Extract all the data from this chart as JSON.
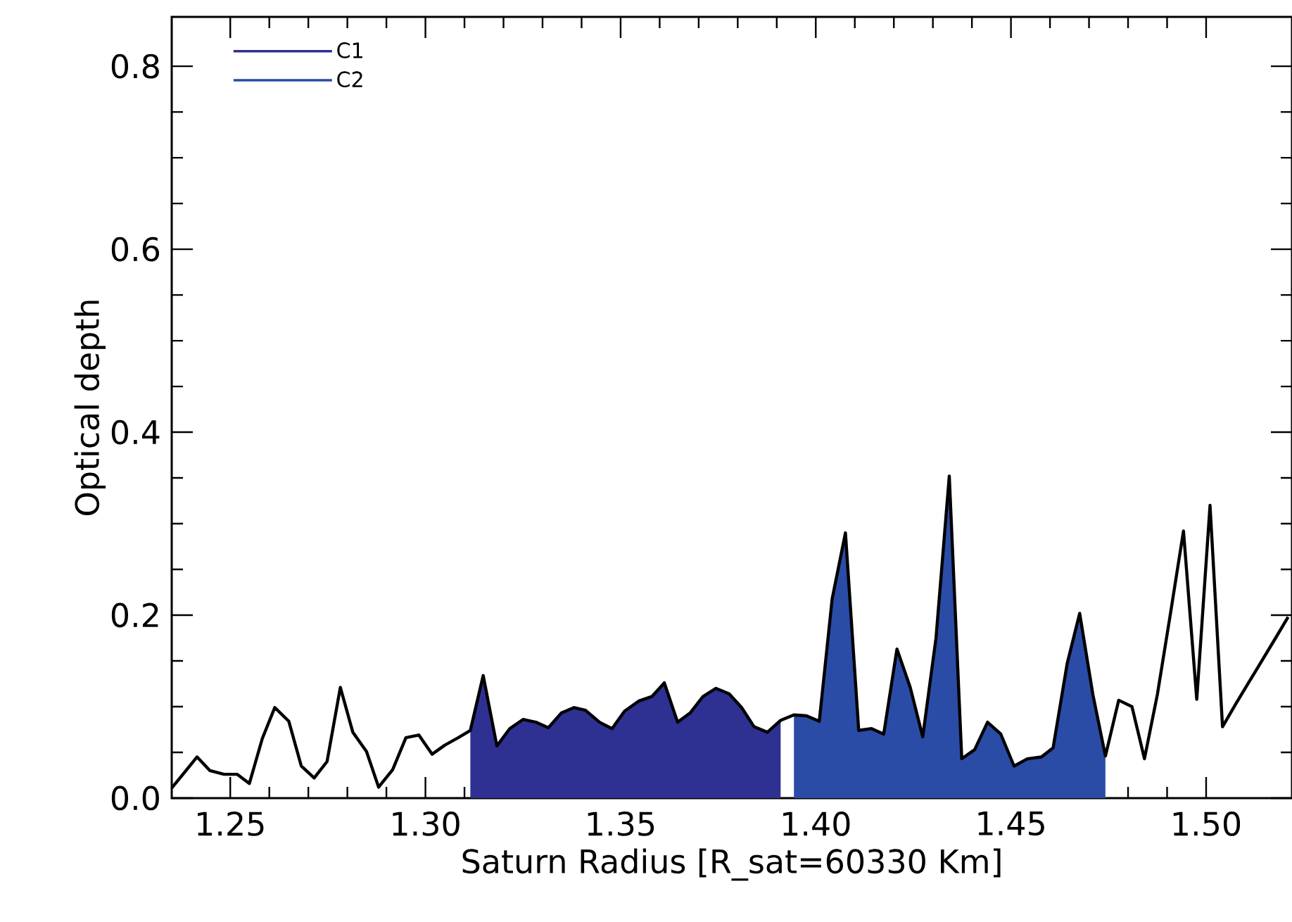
{
  "chart_data": {
    "type": "line",
    "xlabel": "Saturn Radius [R_sat=60330 Km]",
    "ylabel": "Optical depth",
    "xlim": [
      1.235,
      1.522
    ],
    "ylim": [
      0,
      0.854
    ],
    "xticks": [
      {
        "value": 1.25,
        "label": "1.25"
      },
      {
        "value": 1.3,
        "label": "1.30"
      },
      {
        "value": 1.35,
        "label": "1.35"
      },
      {
        "value": 1.4,
        "label": "1.40"
      },
      {
        "value": 1.45,
        "label": "1.45"
      },
      {
        "value": 1.5,
        "label": "1.50"
      }
    ],
    "yticks": [
      {
        "value": 0,
        "label": "0.0"
      },
      {
        "value": 0.2,
        "label": "0.2"
      },
      {
        "value": 0.4,
        "label": "0.4"
      },
      {
        "value": 0.6,
        "label": "0.6"
      },
      {
        "value": 0.8,
        "label": "0.8"
      }
    ],
    "legend": "top left",
    "series": [
      {
        "name": "C1",
        "type": "area",
        "color": "#2e3192",
        "x": [
          1.3115,
          1.3148,
          1.3183,
          1.3216,
          1.325,
          1.3283,
          1.3315,
          1.3348,
          1.3381,
          1.341,
          1.3446,
          1.3478,
          1.351,
          1.3546,
          1.358,
          1.3612,
          1.3646,
          1.3678,
          1.3711,
          1.3744,
          1.3778,
          1.381,
          1.3842,
          1.3876,
          1.391
        ],
        "values": [
          0.074,
          0.134,
          0.057,
          0.076,
          0.086,
          0.083,
          0.077,
          0.093,
          0.099,
          0.096,
          0.083,
          0.076,
          0.095,
          0.106,
          0.111,
          0.126,
          0.083,
          0.093,
          0.111,
          0.12,
          0.114,
          0.099,
          0.078,
          0.072,
          0.085
        ]
      },
      {
        "name": "C2",
        "type": "area",
        "color": "#2b4ca6",
        "x": [
          1.3944,
          1.3976,
          1.4009,
          1.4042,
          1.4076,
          1.411,
          1.4143,
          1.4174,
          1.4208,
          1.4242,
          1.4274,
          1.4308,
          1.4342,
          1.4374,
          1.4407,
          1.444,
          1.4474,
          1.4508,
          1.4542,
          1.4578,
          1.4608,
          1.4644,
          1.4676,
          1.471,
          1.4742
        ],
        "values": [
          0.091,
          0.09,
          0.084,
          0.218,
          0.29,
          0.074,
          0.076,
          0.07,
          0.163,
          0.121,
          0.067,
          0.175,
          0.352,
          0.043,
          0.053,
          0.083,
          0.07,
          0.035,
          0.043,
          0.045,
          0.055,
          0.147,
          0.202,
          0.113,
          0.046
        ]
      },
      {
        "color": "#000000",
        "x": [
          1.235,
          1.2415,
          1.2448,
          1.2484,
          1.2518,
          1.2549,
          1.2582,
          1.2614,
          1.265,
          1.2682,
          1.2715,
          1.2748,
          1.2782,
          1.2814,
          1.2849,
          1.288,
          1.2916,
          1.295,
          1.2983,
          1.3017,
          1.305,
          1.3084,
          1.3115,
          1.3148,
          1.3183,
          1.3216,
          1.325,
          1.3283,
          1.3315,
          1.3348,
          1.3381,
          1.341,
          1.3446,
          1.3478,
          1.351,
          1.3546,
          1.358,
          1.3612,
          1.3646,
          1.3678,
          1.3711,
          1.3744,
          1.3778,
          1.381,
          1.3842,
          1.3876,
          1.391,
          1.3944,
          1.3976,
          1.4009,
          1.4042,
          1.4076,
          1.411,
          1.4143,
          1.4174,
          1.4208,
          1.4242,
          1.4274,
          1.4308,
          1.4342,
          1.4374,
          1.4407,
          1.444,
          1.4474,
          1.4508,
          1.4542,
          1.4578,
          1.4608,
          1.4644,
          1.4676,
          1.471,
          1.4742,
          1.4776,
          1.481,
          1.4842,
          1.4875,
          1.4908,
          1.4942,
          1.4976,
          1.501,
          1.5042,
          1.5076,
          1.5178,
          1.521
        ],
        "values": [
          0.011,
          0.045,
          0.03,
          0.026,
          0.026,
          0.016,
          0.065,
          0.099,
          0.084,
          0.035,
          0.022,
          0.04,
          0.121,
          0.072,
          0.051,
          0.012,
          0.031,
          0.066,
          0.069,
          0.048,
          0.058,
          0.066,
          0.074,
          0.134,
          0.057,
          0.076,
          0.086,
          0.083,
          0.077,
          0.093,
          0.099,
          0.096,
          0.083,
          0.076,
          0.095,
          0.106,
          0.111,
          0.126,
          0.083,
          0.093,
          0.111,
          0.12,
          0.114,
          0.099,
          0.078,
          0.072,
          0.085,
          0.091,
          0.09,
          0.084,
          0.218,
          0.29,
          0.074,
          0.076,
          0.07,
          0.163,
          0.121,
          0.067,
          0.175,
          0.352,
          0.043,
          0.053,
          0.083,
          0.07,
          0.035,
          0.043,
          0.045,
          0.055,
          0.147,
          0.202,
          0.113,
          0.046,
          0.107,
          0.1,
          0.043,
          0.113,
          0.2,
          0.292,
          0.108,
          0.32,
          0.078,
          0.103,
          0.175,
          0.198
        ]
      }
    ]
  }
}
